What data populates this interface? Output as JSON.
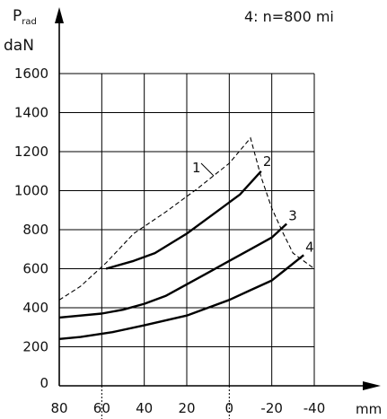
{
  "chart_data": {
    "type": "line",
    "note_text": "4: n=800 mi",
    "y_label_main": "P",
    "y_label_sub": "rad",
    "y_unit": "daN",
    "x_unit": "mm",
    "x_ticks": [
      "80",
      "60",
      "40",
      "20",
      "0",
      "-20",
      "-40"
    ],
    "x_tick_values": [
      80,
      60,
      40,
      20,
      0,
      -20,
      -40
    ],
    "y_ticks": [
      "0",
      "200",
      "400",
      "600",
      "800",
      "1000",
      "1200",
      "1400",
      "1600"
    ],
    "y_tick_values": [
      0,
      200,
      400,
      600,
      800,
      1000,
      1200,
      1400,
      1600
    ],
    "xlim": [
      80,
      -40
    ],
    "ylim": [
      0,
      1600
    ],
    "grid": true,
    "series": [
      {
        "label": "1",
        "style": "dashed",
        "x": [
          80,
          70,
          58,
          45,
          30,
          15,
          0,
          -10,
          -15,
          -20,
          -25,
          -30,
          -40
        ],
        "y": [
          440,
          510,
          630,
          780,
          890,
          1010,
          1140,
          1270,
          1070,
          910,
          790,
          680,
          600
        ]
      },
      {
        "label": "2",
        "style": "solid",
        "x": [
          58,
          45,
          35,
          20,
          5,
          -5,
          -15
        ],
        "y": [
          600,
          640,
          680,
          780,
          900,
          980,
          1100
        ]
      },
      {
        "label": "3",
        "style": "solid",
        "x": [
          80,
          60,
          50,
          40,
          30,
          20,
          10,
          0,
          -10,
          -20,
          -27
        ],
        "y": [
          350,
          370,
          390,
          420,
          460,
          520,
          580,
          640,
          700,
          760,
          830
        ]
      },
      {
        "label": "4",
        "style": "solid",
        "x": [
          80,
          70,
          55,
          40,
          20,
          10,
          0,
          -10,
          -20,
          -27,
          -35
        ],
        "y": [
          240,
          250,
          275,
          310,
          360,
          400,
          440,
          490,
          540,
          600,
          670
        ]
      }
    ]
  }
}
